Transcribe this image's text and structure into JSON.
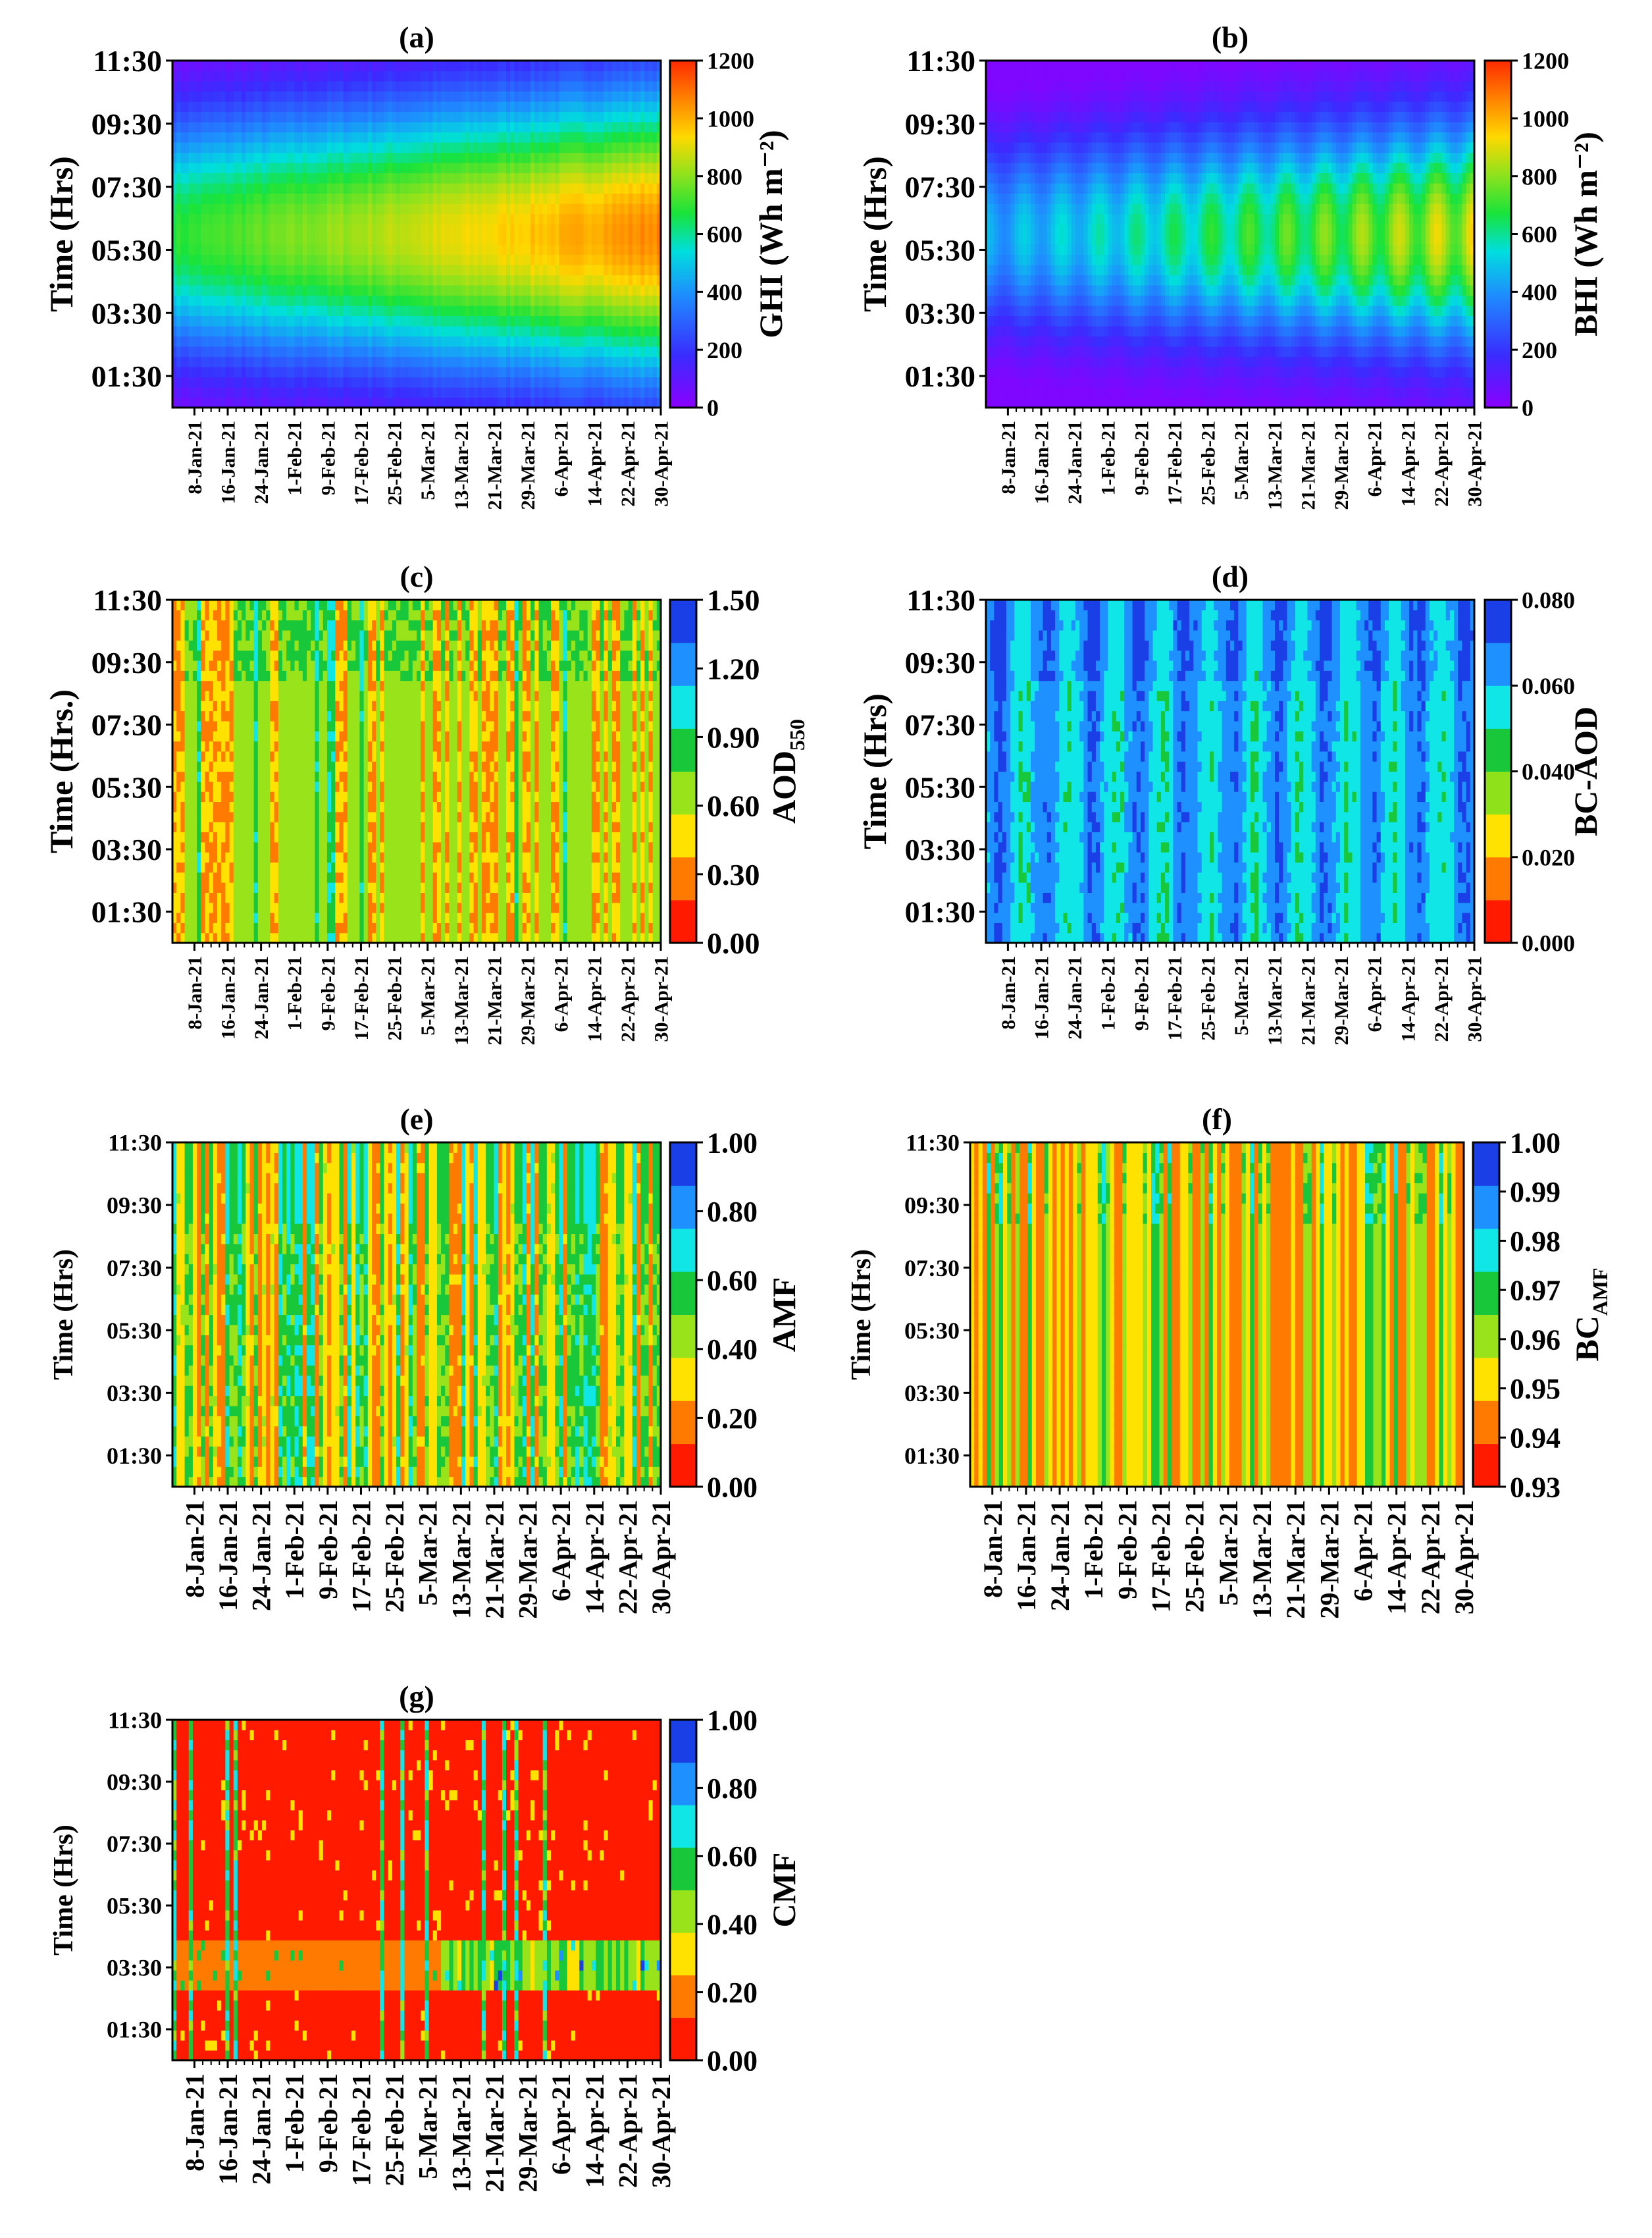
{
  "figure": {
    "time_axis_ticks": [
      "11:30",
      "09:30",
      "07:30",
      "05:30",
      "03:30",
      "01:30"
    ],
    "date_ticks": [
      "8-Jan-21",
      "16-Jan-21",
      "24-Jan-21",
      "1-Feb-21",
      "9-Feb-21",
      "17-Feb-21",
      "25-Feb-21",
      "5-Mar-21",
      "13-Mar-21",
      "21-Mar-21",
      "29-Mar-21",
      "6-Apr-21",
      "14-Apr-21",
      "22-Apr-21",
      "30-Apr-21"
    ]
  },
  "chart_data": [
    {
      "id": "a",
      "type": "heatmap",
      "title": "(a)",
      "ylabel": "Time (Hrs)",
      "colorbar_label": "GHI (Wh m⁻²)",
      "colorbar_ticks": [
        "1200",
        "1000",
        "800",
        "600",
        "400",
        "200",
        "0"
      ],
      "colorbar_range": [
        0,
        1200
      ],
      "colorbar_style": "continuous",
      "x_range": [
        "1-Jan-21",
        "30-Apr-21"
      ],
      "y_range": [
        "00:30",
        "11:30"
      ],
      "field_pattern": "diurnal_growing",
      "peak_value_approx": 1100
    },
    {
      "id": "b",
      "type": "heatmap",
      "title": "(b)",
      "ylabel": "Time (Hrs)",
      "colorbar_label": "BHI (Wh m⁻²)",
      "colorbar_ticks": [
        "1200",
        "1000",
        "800",
        "600",
        "400",
        "200",
        "0"
      ],
      "colorbar_range": [
        0,
        1200
      ],
      "colorbar_style": "continuous",
      "x_range": [
        "1-Jan-21",
        "30-Apr-21"
      ],
      "y_range": [
        "00:30",
        "11:30"
      ],
      "field_pattern": "diurnal_cells",
      "peak_value_approx": 1000
    },
    {
      "id": "c",
      "type": "heatmap",
      "title": "(c)",
      "ylabel": "Time (Hrs.)",
      "colorbar_label": "AOD",
      "colorbar_label_sub": "550",
      "colorbar_ticks": [
        "1.50",
        "1.20",
        "0.90",
        "0.60",
        "0.30",
        "0.00"
      ],
      "colorbar_range": [
        0,
        1.5
      ],
      "colorbar_style": "discrete",
      "x_range": [
        "1-Jan-21",
        "30-Apr-21"
      ],
      "y_range": [
        "00:30",
        "11:30"
      ],
      "field_pattern": "daily_columns",
      "typical_value_range": [
        0.3,
        0.9
      ]
    },
    {
      "id": "d",
      "type": "heatmap",
      "title": "(d)",
      "ylabel": "Time (Hrs)",
      "colorbar_label": "BC-AOD",
      "colorbar_ticks": [
        "0.080",
        "0.060",
        "0.040",
        "0.020",
        "0.000"
      ],
      "colorbar_range": [
        0,
        0.08
      ],
      "colorbar_style": "discrete",
      "x_range": [
        "1-Jan-21",
        "30-Apr-21"
      ],
      "y_range": [
        "00:30",
        "11:30"
      ],
      "field_pattern": "smooth_columns",
      "typical_value_range": [
        0.06,
        0.075
      ]
    },
    {
      "id": "e",
      "type": "heatmap",
      "title": "(e)",
      "ylabel": "Time (Hrs)",
      "colorbar_label": "AMF",
      "colorbar_ticks": [
        "1.00",
        "0.80",
        "0.60",
        "0.40",
        "0.20",
        "0.00"
      ],
      "colorbar_range": [
        0,
        1
      ],
      "colorbar_style": "discrete",
      "x_range": [
        "1-Jan-21",
        "30-Apr-21"
      ],
      "y_range": [
        "00:30",
        "11:30"
      ],
      "field_pattern": "daily_columns",
      "typical_value_range": [
        0.25,
        0.65
      ]
    },
    {
      "id": "f",
      "type": "heatmap",
      "title": "(f)",
      "ylabel": "Time (Hrs)",
      "colorbar_label": "BC",
      "colorbar_label_sub": "AMF",
      "colorbar_ticks": [
        "1.00",
        "0.99",
        "0.98",
        "0.97",
        "0.96",
        "0.95",
        "0.94",
        "0.93"
      ],
      "colorbar_range": [
        0.93,
        1.0
      ],
      "colorbar_style": "discrete",
      "x_range": [
        "1-Jan-21",
        "30-Apr-21"
      ],
      "y_range": [
        "00:30",
        "11:30"
      ],
      "field_pattern": "daily_columns",
      "typical_value_range": [
        0.945,
        0.965
      ]
    },
    {
      "id": "g",
      "type": "heatmap",
      "title": "(g)",
      "ylabel": "Time (Hrs)",
      "colorbar_label": "CMF",
      "colorbar_ticks": [
        "1.00",
        "0.80",
        "0.60",
        "0.40",
        "0.20",
        "0.00"
      ],
      "colorbar_range": [
        0,
        1
      ],
      "colorbar_style": "discrete",
      "x_range": [
        "1-Jan-21",
        "30-Apr-21"
      ],
      "y_range": [
        "00:30",
        "11:30"
      ],
      "field_pattern": "cloudy_low",
      "typical_value_range": [
        0.0,
        0.3
      ]
    }
  ]
}
